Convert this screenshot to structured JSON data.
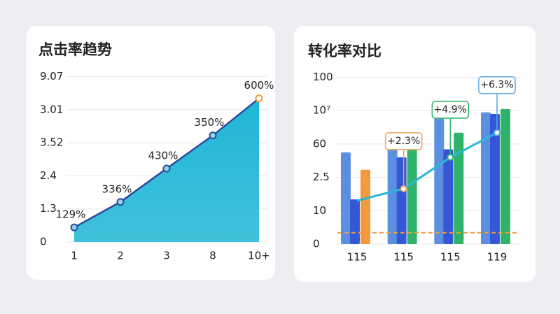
{
  "chart_data": [
    {
      "type": "area",
      "title": "点击率趋势",
      "categories": [
        "1",
        "2",
        "3",
        "8",
        "10+"
      ],
      "values": [
        0.44,
        1.21,
        2.22,
        3.22,
        4.34
      ],
      "annotations": [
        "129%",
        "336%",
        "430%",
        "350%",
        "600%"
      ],
      "color": "#1fb6d5",
      "line_color": "#2e4a9e",
      "end_marker_color": "#f39a3c",
      "ylim": [
        0,
        5.2
      ],
      "yticks": [
        {
          "value": 0,
          "label": "0"
        },
        {
          "value": 1,
          "label": "1.3"
        },
        {
          "value": 2,
          "label": "2.4"
        },
        {
          "value": 3,
          "label": "3.52"
        },
        {
          "value": 4,
          "label": "3.01"
        },
        {
          "value": 5,
          "label": "9.07"
        }
      ],
      "grid": true
    },
    {
      "type": "bar_line",
      "title": "转化率对比",
      "categories": [
        "115",
        "115",
        "115",
        "119"
      ],
      "series": [
        {
          "color": "#5b8fe0",
          "values": [
            2.75,
            3.17,
            3.76,
            3.95
          ]
        },
        {
          "color": "#3457d5",
          "values": [
            1.34,
            2.6,
            2.84,
            3.9
          ]
        },
        {
          "colors": [
            "#f39a3c",
            "#2fb36a",
            "#2fb36a",
            "#2fb36a"
          ],
          "values": [
            2.23,
            2.98,
            3.34,
            4.05
          ]
        },
        {
          "type": "line",
          "color": "#27b8d8",
          "values": [
            1.3,
            1.66,
            2.6,
            3.34
          ]
        }
      ],
      "annotations": [
        null,
        "+2.3%",
        "+4.9%",
        "+6.3%"
      ],
      "annotation_colors": [
        null,
        "#f2a25c",
        "#2fb36a",
        "#5aa9e6"
      ],
      "reference_line": {
        "value": 0.34,
        "color": "#f39a3c"
      },
      "ylim": [
        0,
        5.2
      ],
      "yticks": [
        {
          "value": 0,
          "label": "0"
        },
        {
          "value": 1,
          "label": "10"
        },
        {
          "value": 2,
          "label": "2.5"
        },
        {
          "value": 3,
          "label": "60"
        },
        {
          "value": 4,
          "label": "10⁷"
        },
        {
          "value": 5,
          "label": "100"
        }
      ],
      "grid": true
    }
  ]
}
